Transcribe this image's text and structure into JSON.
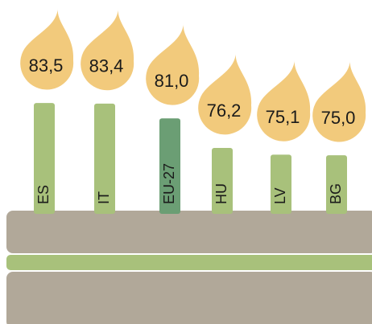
{
  "chart_data": {
    "type": "bar",
    "categories": [
      "ES",
      "IT",
      "EU-27",
      "HU",
      "LV",
      "BG"
    ],
    "values": [
      83.5,
      83.4,
      81.0,
      76.2,
      75.1,
      75.0
    ],
    "value_labels": [
      "83,5",
      "83,4",
      "81,0",
      "76,2",
      "75,1",
      "75,0"
    ],
    "colors": [
      "#a8c17b",
      "#a8c17b",
      "#6b9e74",
      "#a8c17b",
      "#a8c17b",
      "#a8c17b"
    ],
    "flame_color": "#f2ca7c",
    "ylim": [
      66,
      84
    ]
  }
}
